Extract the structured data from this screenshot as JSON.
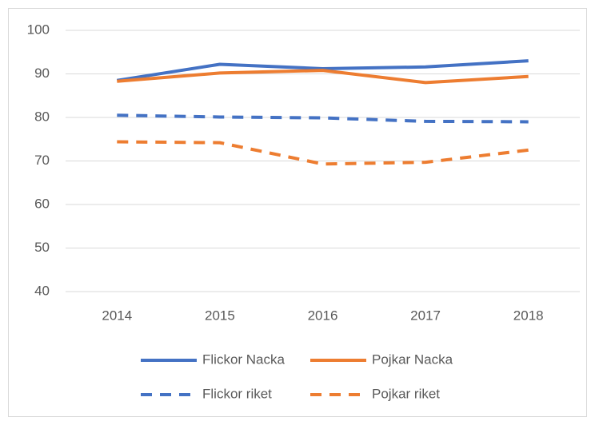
{
  "chart_data": {
    "type": "line",
    "categories": [
      "2014",
      "2015",
      "2016",
      "2017",
      "2018"
    ],
    "series": [
      {
        "name": "Flickor Nacka",
        "color": "#4472c4",
        "line_style": "solid",
        "values": [
          88.5,
          92.2,
          91.2,
          91.6,
          93
        ]
      },
      {
        "name": "Pojkar Nacka",
        "color": "#ed7d31",
        "line_style": "solid",
        "values": [
          88.3,
          90.2,
          90.8,
          88,
          89.4
        ]
      },
      {
        "name": "Flickor riket",
        "color": "#4472c4",
        "line_style": "dashed",
        "values": [
          80.5,
          80.1,
          79.9,
          79.1,
          79
        ]
      },
      {
        "name": "Pojkar riket",
        "color": "#ed7d31",
        "line_style": "dashed",
        "values": [
          74.4,
          74.2,
          69.3,
          69.7,
          72.5
        ]
      }
    ],
    "ylim": [
      40,
      100
    ],
    "yticks": [
      40,
      50,
      60,
      70,
      80,
      90,
      100
    ],
    "grid": true,
    "legend": "bottom"
  }
}
